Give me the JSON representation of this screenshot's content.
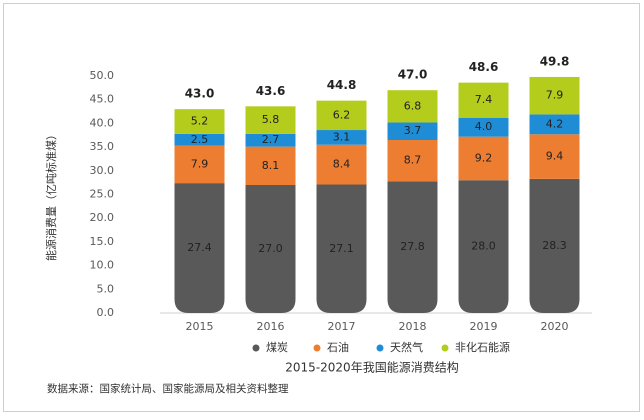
{
  "chart_data": {
    "type": "stacked_bar",
    "title": "2015-2020年我国能源消费结构",
    "y_axis_label": "能源消费量（亿吨标准煤）",
    "source": "数据来源：国家统计局、国家能源局及相关资料整理",
    "categories": [
      "2015",
      "2016",
      "2017",
      "2018",
      "2019",
      "2020"
    ],
    "series": [
      {
        "name": "煤炭",
        "color": "#595959",
        "values": [
          27.4,
          27,
          27.1,
          27.8,
          28,
          28.3
        ],
        "value_labels": [
          "27.4",
          "27.0",
          "27.1",
          "27.8",
          "28.0",
          "28.3"
        ]
      },
      {
        "name": "石油",
        "color": "#ed7d31",
        "values": [
          7.9,
          8.1,
          8.4,
          8.7,
          9.2,
          9.4
        ],
        "value_labels": [
          "7.9",
          "8.1",
          "8.4",
          "8.7",
          "9.2",
          "9.4"
        ]
      },
      {
        "name": "天然气",
        "color": "#1f8dd6",
        "values": [
          2.5,
          2.7,
          3.1,
          3.7,
          4,
          4.2
        ],
        "value_labels": [
          "2.5",
          "2.7",
          "3.1",
          "3.7",
          "4.0",
          "4.2"
        ]
      },
      {
        "name": "非化石能源",
        "color": "#b4cc1c",
        "values": [
          5.2,
          5.8,
          6.2,
          6.8,
          7.4,
          7.9
        ],
        "value_labels": [
          "5.2",
          "5.8",
          "6.2",
          "6.8",
          "7.4",
          "7.9"
        ]
      }
    ],
    "totals": [
      43,
      43.6,
      44.8,
      47,
      48.6,
      49.8
    ],
    "total_labels": [
      "43.0",
      "43.6",
      "44.8",
      "47.0",
      "48.6",
      "49.8"
    ],
    "ylim": [
      0,
      50
    ],
    "yticks": [
      {
        "value": 0,
        "label": "0.0"
      },
      {
        "value": 5,
        "label": "5.0"
      },
      {
        "value": 10,
        "label": "10.0"
      },
      {
        "value": 15,
        "label": "15.0"
      },
      {
        "value": 20,
        "label": "20.0"
      },
      {
        "value": 25,
        "label": "25.0"
      },
      {
        "value": 30,
        "label": "30.0"
      },
      {
        "value": 35,
        "label": "35.0"
      },
      {
        "value": 40,
        "label": "40.0"
      },
      {
        "value": 45,
        "label": "45.0"
      },
      {
        "value": 50,
        "label": "50.0"
      }
    ],
    "grid": false
  }
}
